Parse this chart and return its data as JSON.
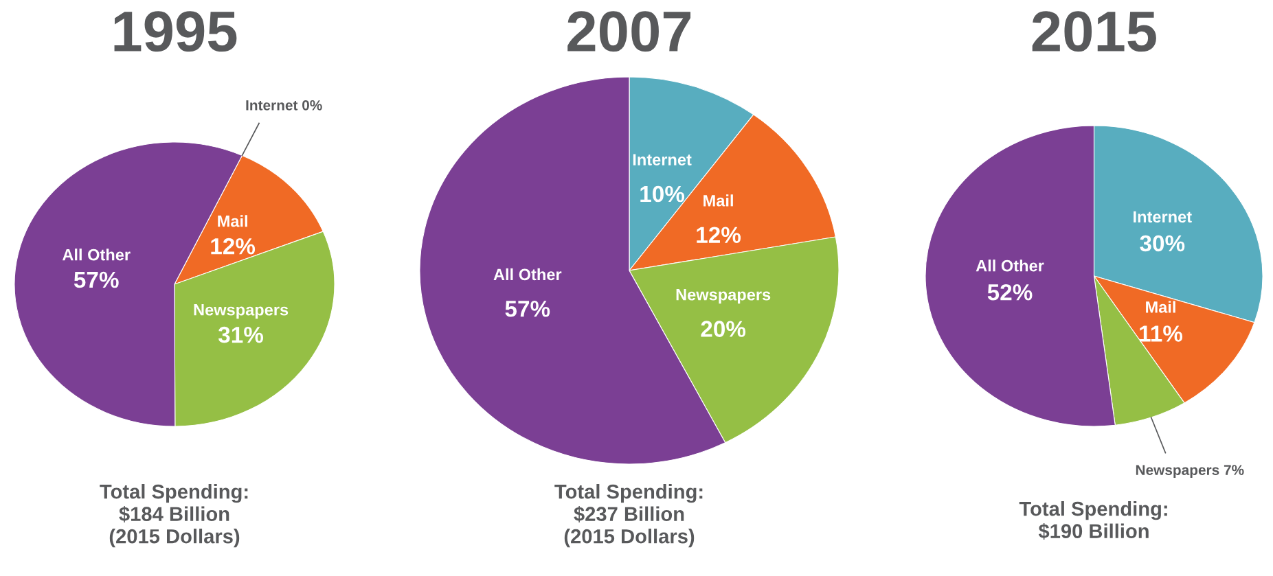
{
  "chart_data": [
    {
      "type": "pie",
      "title": "1995",
      "categories": [
        "Internet",
        "Mail",
        "Newspapers",
        "All Other"
      ],
      "values": [
        0,
        12,
        31,
        57
      ],
      "value_labels": [
        "0%",
        "12%",
        "31%",
        "57%"
      ],
      "colors": [
        "#58adbf",
        "#f06a25",
        "#95bf45",
        "#7b3f94"
      ],
      "annotations": [
        "Total Spending:\n$184 Billion\n(2015 Dollars)"
      ]
    },
    {
      "type": "pie",
      "title": "2007",
      "categories": [
        "Internet",
        "Mail",
        "Newspapers",
        "All Other"
      ],
      "values": [
        10,
        12,
        20,
        57
      ],
      "value_labels": [
        "10%",
        "12%",
        "20%",
        "57%"
      ],
      "colors": [
        "#58adbf",
        "#f06a25",
        "#95bf45",
        "#7b3f94"
      ],
      "annotations": [
        "Total Spending:\n$237 Billion\n(2015 Dollars)"
      ]
    },
    {
      "type": "pie",
      "title": "2015",
      "categories": [
        "Internet",
        "Mail",
        "Newspapers",
        "All Other"
      ],
      "values": [
        30,
        11,
        7,
        52
      ],
      "value_labels": [
        "30%",
        "11%",
        "7%",
        "52%"
      ],
      "colors": [
        "#58adbf",
        "#f06a25",
        "#95bf45",
        "#7b3f94"
      ],
      "annotations": [
        "Total Spending:\n$190 Billion"
      ]
    }
  ]
}
